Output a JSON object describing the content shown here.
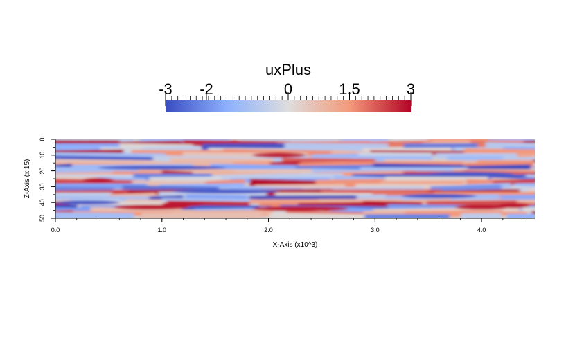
{
  "chart_data": {
    "type": "heatmap",
    "title": "",
    "colorbar": {
      "title": "uxPlus",
      "range": [
        -3,
        3
      ],
      "tick_labels": [
        "-3",
        "-2",
        "0",
        "1.5",
        "3"
      ],
      "tick_values": [
        -3,
        -2,
        0,
        1.5,
        3
      ],
      "colormap": "cool-to-warm",
      "colors": {
        "low": "#3b4cc0",
        "mid": "#dddddd",
        "high": "#b40426"
      },
      "orientation": "horizontal",
      "placement": "top"
    },
    "x_axis": {
      "label": "X-Axis (x10^3)",
      "range": [
        0,
        4.5
      ],
      "tick_values": [
        0,
        1,
        2,
        3,
        4
      ],
      "tick_labels": [
        "0.0",
        "1.0",
        "2.0",
        "3.0",
        "4.0"
      ]
    },
    "z_axis": {
      "label": "Z-Axis (x 15)",
      "range": [
        0,
        50
      ],
      "tick_values": [
        0,
        10,
        20,
        30,
        40,
        50
      ],
      "tick_labels": [
        "0",
        "10",
        "20",
        "30",
        "40",
        "50"
      ],
      "inverted": true
    },
    "field": {
      "description_variable": "uxPlus",
      "pattern": "streamwise streaks",
      "value_range": [
        -3,
        3
      ]
    }
  }
}
